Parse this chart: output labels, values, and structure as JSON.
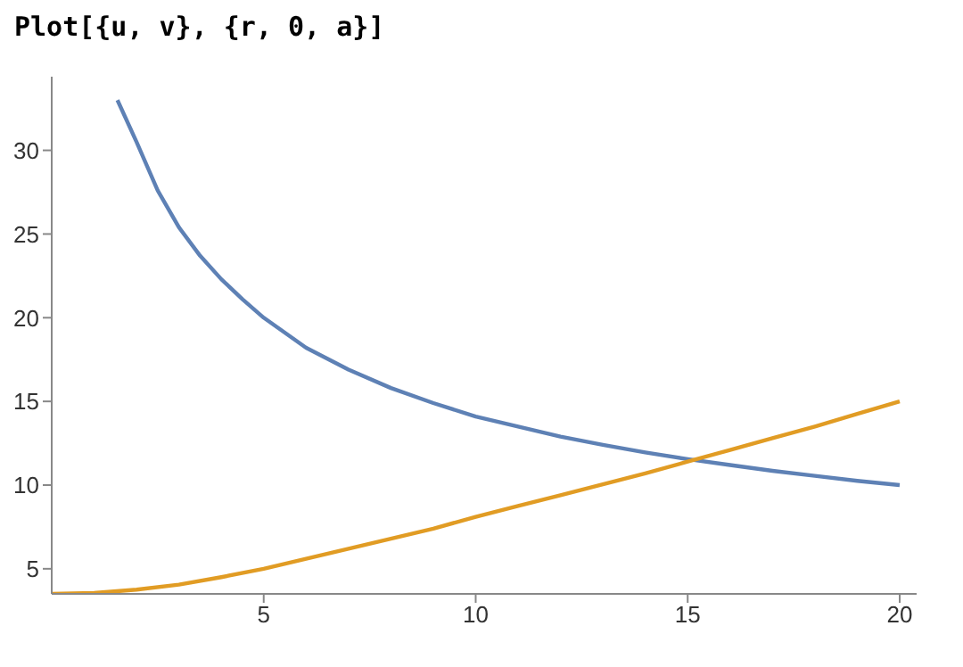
{
  "chart_data": {
    "type": "line",
    "title": "Plot[{u, v}, {r, 0, a}]",
    "xlim": [
      0,
      20.4
    ],
    "xticks": [
      5,
      10,
      15,
      20
    ],
    "ylim": [
      3.5,
      34.4
    ],
    "yticks": [
      5,
      10,
      15,
      20,
      25,
      30
    ],
    "series": [
      {
        "color": "#5e81b5",
        "x": [
          1.55,
          2,
          2.5,
          3,
          3.5,
          4,
          4.5,
          5,
          6,
          7,
          8,
          9,
          10,
          11,
          12,
          13,
          14,
          15,
          16,
          17,
          18,
          19,
          20
        ],
        "values": [
          33,
          30.5,
          27.6,
          25.4,
          23.7,
          22.3,
          21.1,
          20,
          18.2,
          16.9,
          15.8,
          14.9,
          14.1,
          13.5,
          12.9,
          12.4,
          11.95,
          11.55,
          11.2,
          10.85,
          10.55,
          10.25,
          10
        ]
      },
      {
        "color": "#e19c24",
        "x": [
          0,
          1,
          2,
          3,
          4,
          5,
          6,
          7,
          8,
          9,
          10,
          11,
          12,
          13,
          14,
          15,
          16,
          17,
          18,
          19,
          20
        ],
        "values": [
          3.5,
          3.55,
          3.75,
          4.05,
          4.5,
          5,
          5.6,
          6.2,
          6.8,
          7.4,
          8.1,
          8.75,
          9.4,
          10.05,
          10.7,
          11.4,
          12.1,
          12.8,
          13.5,
          14.25,
          15
        ]
      }
    ]
  }
}
